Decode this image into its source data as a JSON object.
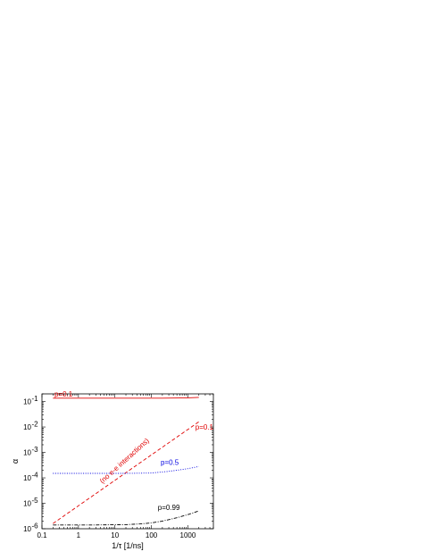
{
  "chart_data": {
    "type": "line",
    "xlabel": "1/τ [1/ns]",
    "ylabel": "α",
    "xscale": "log",
    "yscale": "log",
    "xlim": [
      0.1,
      5000
    ],
    "ylim": [
      1e-06,
      0.2
    ],
    "x_ticks": [
      0.1,
      1,
      10,
      100,
      1000
    ],
    "x_tick_labels": [
      "0.1",
      "1",
      "10",
      "100",
      "1000"
    ],
    "y_ticks": [
      1e-06,
      1e-05,
      0.0001,
      0.001,
      0.01,
      0.1
    ],
    "y_tick_labels": [
      {
        "base": "10",
        "exp": "-6"
      },
      {
        "base": "10",
        "exp": "-5"
      },
      {
        "base": "10",
        "exp": "-4"
      },
      {
        "base": "10",
        "exp": "-3"
      },
      {
        "base": "10",
        "exp": "-2"
      },
      {
        "base": "10",
        "exp": "-1"
      }
    ],
    "grid": false,
    "series": [
      {
        "color": "#e00000",
        "style": "solid",
        "label": "p=0.1",
        "x": [
          0.2,
          2,
          20,
          200,
          1000,
          2000
        ],
        "y": [
          0.135,
          0.135,
          0.135,
          0.135,
          0.14,
          0.145
        ]
      },
      {
        "color": "#e00000",
        "style": "dashed",
        "label": "p=0.1",
        "x": [
          0.2,
          2,
          20,
          200,
          2000
        ],
        "y": [
          1.6e-06,
          1.6e-05,
          0.00016,
          0.0016,
          0.016
        ]
      },
      {
        "color": "#0000e0",
        "style": "dotted",
        "label": "p=0.5",
        "x": [
          0.2,
          2,
          20,
          100,
          300,
          1000,
          2000
        ],
        "y": [
          0.00015,
          0.00015,
          0.00015,
          0.000155,
          0.00018,
          0.00023,
          0.00028
        ]
      },
      {
        "color": "#000000",
        "style": "dashdot",
        "label": "p=0.99",
        "x": [
          0.2,
          2,
          20,
          50,
          100,
          200,
          500,
          1000,
          2000
        ],
        "y": [
          1.4e-06,
          1.4e-06,
          1.45e-06,
          1.55e-06,
          1.7e-06,
          2e-06,
          2.7e-06,
          3.6e-06,
          5e-06
        ]
      }
    ],
    "annotations": [
      {
        "text": "p=0.1",
        "color": "#e00000",
        "x": 0.22,
        "y": 0.16,
        "rotate": false
      },
      {
        "text": "(no e-e interactions)",
        "color": "#e00000",
        "x": 20,
        "y": 0.0004,
        "rotate": true
      },
      {
        "text": "p=0.1",
        "color": "#e00000",
        "x": 1600,
        "y": 0.008,
        "rotate": false
      },
      {
        "text": "p=0.5",
        "color": "#0000e0",
        "x": 180,
        "y": 0.00032,
        "rotate": false
      },
      {
        "text": "p=0.99",
        "color": "#000000",
        "x": 150,
        "y": 5.5e-06,
        "rotate": false
      }
    ]
  }
}
